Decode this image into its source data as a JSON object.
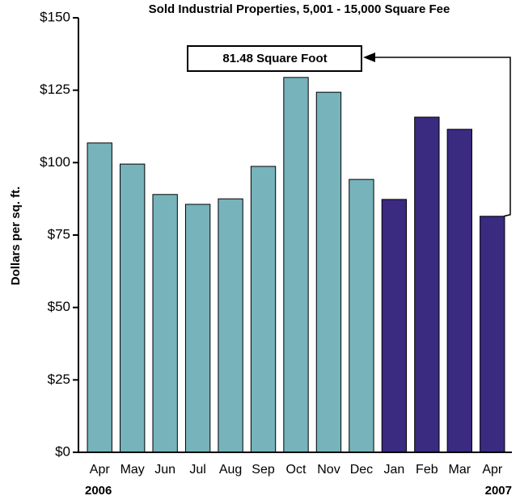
{
  "chart_data": {
    "type": "bar",
    "title": "Sold Industrial Properties, 5,001 - 15,000 Square Fee",
    "y_label": "Dollars per sq. ft.",
    "annotation": "81.48 Square Foot",
    "year_labels": [
      "2006",
      "2007"
    ],
    "categories": [
      "Apr",
      "May",
      "Jun",
      "Jul",
      "Aug",
      "Sep",
      "Oct",
      "Nov",
      "Dec",
      "Jan",
      "Feb",
      "Mar",
      "Apr"
    ],
    "values": [
      106.8,
      99.5,
      89,
      85.6,
      87.5,
      98.7,
      129.4,
      124.3,
      94.2,
      87.3,
      115.7,
      111.5,
      81.48
    ],
    "colors": [
      "#76b3bb",
      "#76b3bb",
      "#76b3bb",
      "#76b3bb",
      "#76b3bb",
      "#76b3bb",
      "#76b3bb",
      "#76b3bb",
      "#76b3bb",
      "#3a2a80",
      "#3a2a80",
      "#3a2a80",
      "#3a2a80"
    ],
    "ylim": [
      0,
      150
    ],
    "yticks": [
      {
        "value": 0,
        "label": "$0"
      },
      {
        "value": 25,
        "label": "$25"
      },
      {
        "value": 50,
        "label": "$50"
      },
      {
        "value": 75,
        "label": "$75"
      },
      {
        "value": 100,
        "label": "$100"
      },
      {
        "value": 125,
        "label": "$125"
      },
      {
        "value": 150,
        "label": "$150"
      }
    ],
    "grid": false
  }
}
